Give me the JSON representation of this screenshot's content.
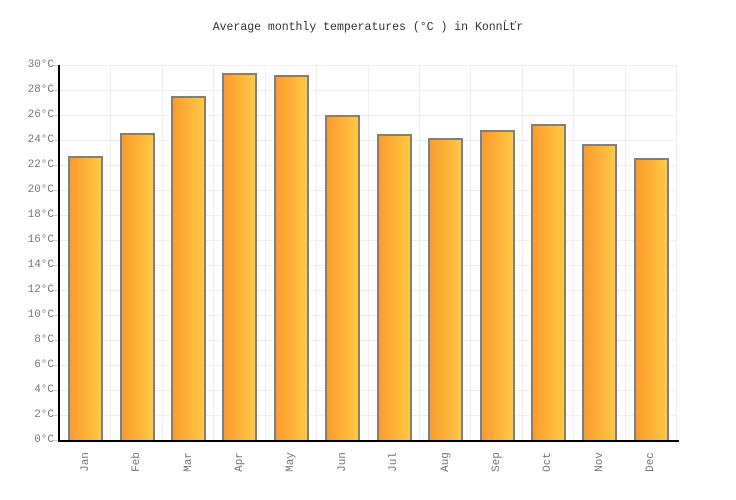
{
  "page": {
    "background": "#ffffff"
  },
  "chart_data": {
    "type": "bar",
    "title": "Average monthly temperatures (°C ) in KonnĹťr",
    "categories": [
      "Jan",
      "Feb",
      "Mar",
      "Apr",
      "May",
      "Jun",
      "Jul",
      "Aug",
      "Sep",
      "Oct",
      "Nov",
      "Dec"
    ],
    "values": [
      22.7,
      24.6,
      27.5,
      29.4,
      29.2,
      26.0,
      24.5,
      24.2,
      24.8,
      25.3,
      23.7,
      22.6
    ],
    "unit": "°C",
    "xlabel": "",
    "ylabel": "",
    "ylim": [
      0,
      30
    ],
    "ytick_step": 2,
    "ytick_labels": [
      "0°C",
      "2°C",
      "4°C",
      "6°C",
      "8°C",
      "10°C",
      "12°C",
      "14°C",
      "16°C",
      "18°C",
      "20°C",
      "22°C",
      "24°C",
      "26°C",
      "28°C",
      "30°C"
    ],
    "grid": true,
    "legend": false,
    "colors": {
      "background": "#ffffff",
      "grid": "#efefef",
      "axis": "#000000",
      "tick": "#cccccc",
      "label_text": "#777777",
      "title_text": "#333333",
      "bar_border": "#7f7f7f",
      "bar_gradient_left": "#fc9b2e",
      "bar_gradient_right": "#ffc843"
    }
  }
}
